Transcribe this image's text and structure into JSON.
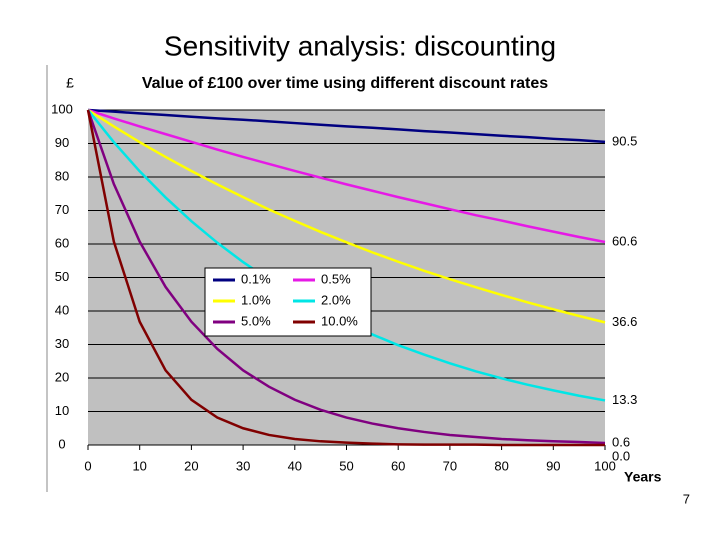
{
  "slide_title": "Sensitivity analysis: discounting",
  "page_number": "7",
  "chart_data": {
    "type": "line",
    "title": "Value of £100 over time using different discount rates",
    "y_label": "£",
    "x_label": "Years",
    "x": [
      0,
      5,
      10,
      15,
      20,
      25,
      30,
      35,
      40,
      45,
      50,
      55,
      60,
      65,
      70,
      75,
      80,
      85,
      90,
      95,
      100
    ],
    "series": [
      {
        "name": "0.1%",
        "color": "#000080",
        "values": [
          100,
          99.5,
          99.0,
          98.5,
          98.0,
          97.5,
          97.1,
          96.6,
          96.1,
          95.6,
          95.1,
          94.7,
          94.2,
          93.7,
          93.3,
          92.8,
          92.3,
          91.9,
          91.4,
          91.0,
          90.5
        ],
        "value_labels": [
          null,
          null,
          null,
          null,
          null,
          null,
          null,
          null,
          null,
          null,
          null,
          null,
          null,
          null,
          null,
          null,
          null,
          null,
          null,
          null,
          "90.5"
        ]
      },
      {
        "name": "0.5%",
        "color": "#e619e6",
        "values": [
          100,
          97.5,
          95.1,
          92.8,
          90.5,
          88.2,
          86.0,
          83.9,
          81.8,
          79.8,
          77.8,
          75.9,
          74.0,
          72.2,
          70.4,
          68.6,
          67.0,
          65.3,
          63.7,
          62.1,
          60.6
        ],
        "value_labels": [
          null,
          null,
          null,
          null,
          null,
          null,
          null,
          null,
          null,
          null,
          null,
          null,
          null,
          null,
          null,
          null,
          null,
          null,
          null,
          null,
          "60.6"
        ]
      },
      {
        "name": "1.0%",
        "color": "#ffff00",
        "values": [
          100,
          95.1,
          90.4,
          86.0,
          81.8,
          77.8,
          74.0,
          70.3,
          66.9,
          63.6,
          60.5,
          57.5,
          54.7,
          52.0,
          49.5,
          47.1,
          44.8,
          42.6,
          40.5,
          38.5,
          36.6
        ],
        "value_labels": [
          null,
          null,
          null,
          null,
          null,
          null,
          null,
          null,
          null,
          null,
          null,
          null,
          null,
          null,
          null,
          null,
          null,
          null,
          null,
          null,
          "36.6"
        ]
      },
      {
        "name": "2.0%",
        "color": "#00e6e6",
        "values": [
          100,
          90.4,
          81.7,
          73.9,
          66.8,
          60.4,
          54.6,
          49.4,
          44.6,
          40.3,
          36.5,
          33.0,
          29.8,
          27.0,
          24.4,
          22.0,
          19.9,
          18.0,
          16.3,
          14.7,
          13.3
        ],
        "value_labels": [
          null,
          null,
          null,
          null,
          null,
          null,
          null,
          null,
          null,
          null,
          null,
          null,
          null,
          null,
          null,
          null,
          null,
          null,
          null,
          null,
          "13.3"
        ]
      },
      {
        "name": "5.0%",
        "color": "#800080",
        "values": [
          100,
          77.9,
          60.7,
          47.2,
          36.8,
          28.7,
          22.3,
          17.4,
          13.5,
          10.5,
          8.2,
          6.4,
          5.0,
          3.9,
          3.0,
          2.4,
          1.8,
          1.4,
          1.1,
          0.9,
          0.6
        ],
        "value_labels": [
          null,
          null,
          null,
          null,
          null,
          null,
          null,
          null,
          null,
          null,
          null,
          null,
          null,
          null,
          null,
          null,
          null,
          null,
          null,
          null,
          "0.6"
        ]
      },
      {
        "name": "10.0%",
        "color": "#800000",
        "values": [
          100,
          60.7,
          36.8,
          22.3,
          13.5,
          8.2,
          5.0,
          3.0,
          1.8,
          1.1,
          0.7,
          0.4,
          0.2,
          0.1,
          0.1,
          0.1,
          0.0,
          0.0,
          0.0,
          0.0,
          0.0
        ],
        "value_labels": [
          null,
          null,
          null,
          null,
          null,
          null,
          null,
          null,
          null,
          null,
          null,
          null,
          null,
          null,
          null,
          null,
          null,
          null,
          null,
          null,
          "0.0"
        ]
      }
    ],
    "xlim": [
      0,
      100
    ],
    "xticks": [
      0,
      10,
      20,
      30,
      40,
      50,
      60,
      70,
      80,
      90,
      100
    ],
    "ylim": [
      0,
      100
    ],
    "yticks": [
      0,
      10,
      20,
      30,
      40,
      50,
      60,
      70,
      80,
      90,
      100
    ],
    "grid": true,
    "plot_background": "#c0c0c0"
  }
}
